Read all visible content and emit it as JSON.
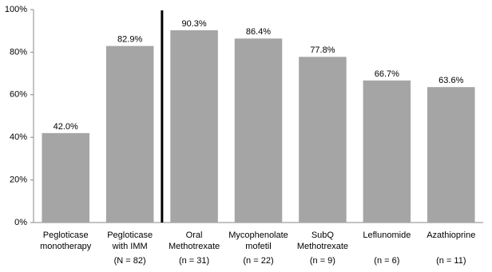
{
  "chart_data": {
    "type": "bar",
    "categories": [
      [
        "Pegloticase",
        "monotherapy"
      ],
      [
        "Pegloticase",
        "with IMM"
      ],
      [
        "Oral",
        "Methotrexate"
      ],
      [
        "Mycophenolate",
        "mofetil"
      ],
      [
        "SubQ",
        "Methotrexate"
      ],
      [
        "Leflunomide"
      ],
      [
        "Azathioprine"
      ]
    ],
    "sample_sizes": [
      null,
      "(N = 82)",
      "(n = 31)",
      "(n = 22)",
      "(n = 9)",
      "(n = 6)",
      "(n = 11)"
    ],
    "values": [
      42.0,
      82.9,
      90.3,
      86.4,
      77.8,
      66.7,
      63.6
    ],
    "value_labels": [
      "42.0%",
      "82.9%",
      "90.3%",
      "86.4%",
      "77.8%",
      "66.7%",
      "63.6%"
    ],
    "color": "#a5a5a5",
    "ylim": [
      0,
      100
    ],
    "yticks": [
      {
        "value": 0,
        "label": "0%"
      },
      {
        "value": 20,
        "label": "20%"
      },
      {
        "value": 40,
        "label": "40%"
      },
      {
        "value": 60,
        "label": "60%"
      },
      {
        "value": 80,
        "label": "80%"
      },
      {
        "value": 100,
        "label": "100%"
      }
    ],
    "grid": false
  }
}
